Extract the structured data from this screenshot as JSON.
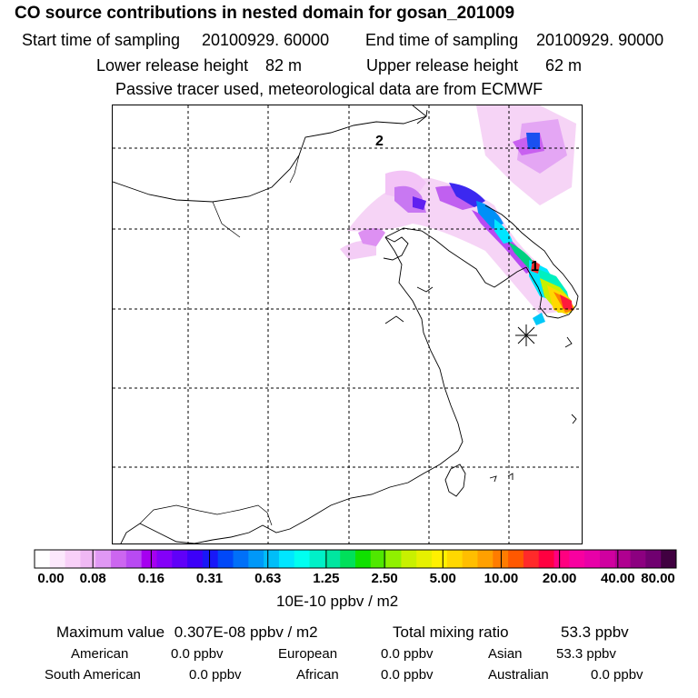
{
  "title": "CO  source contributions in nested domain for gosan_201009",
  "sampling": {
    "start_label": "Start time of sampling",
    "start_value": "20100929. 60000",
    "end_label": "End time of sampling",
    "end_value": "20100929. 90000"
  },
  "release": {
    "lower_label": "Lower release height",
    "lower_value": "82 m",
    "upper_label": "Upper release height",
    "upper_value": "62 m"
  },
  "note": "Passive tracer used, meteorological data are from ECMWF",
  "map": {
    "point_labels": [
      "2",
      "1"
    ],
    "site_marker": "asterisk-marker"
  },
  "colorbar": {
    "ticks": [
      "0.00",
      "0.08",
      "0.16",
      "0.31",
      "0.63",
      "1.25",
      "2.50",
      "5.00",
      "10.00",
      "20.00",
      "40.00",
      "80.00"
    ],
    "colors": [
      "#ffffff",
      "#fce8fc",
      "#f8d0f8",
      "#f0b8f4",
      "#e098f4",
      "#cc66f0",
      "#b84af2",
      "#a600f0",
      "#8400f8",
      "#6000f8",
      "#3c00f8",
      "#1818f8",
      "#0048f8",
      "#0070f8",
      "#0098f8",
      "#00bef8",
      "#00e6ff",
      "#00fff0",
      "#00f0c8",
      "#00e6a0",
      "#00e05a",
      "#10e000",
      "#50e800",
      "#90f000",
      "#c8f000",
      "#e6f000",
      "#fff000",
      "#ffd800",
      "#ffbe00",
      "#ffa000",
      "#ff7c00",
      "#ff5800",
      "#ff2a2a",
      "#ff0040",
      "#ff0080",
      "#f800a0",
      "#e800a8",
      "#d000a0",
      "#b00090",
      "#8c0080",
      "#700070",
      "#400040"
    ],
    "units": "10E-10 ppbv / m2"
  },
  "summary": {
    "max_label": "Maximum value",
    "max_value": "0.307E-08 ppbv / m2",
    "total_label": "Total mixing ratio",
    "total_value": "53.3 ppbv",
    "regions": [
      {
        "name": "American",
        "value": "0.0 ppbv"
      },
      {
        "name": "European",
        "value": "0.0 ppbv"
      },
      {
        "name": "Asian",
        "value": "53.3 ppbv"
      },
      {
        "name": "South American",
        "value": "0.0 ppbv"
      },
      {
        "name": "African",
        "value": "0.0 ppbv"
      },
      {
        "name": "Australian",
        "value": "0.0 ppbv"
      }
    ]
  }
}
